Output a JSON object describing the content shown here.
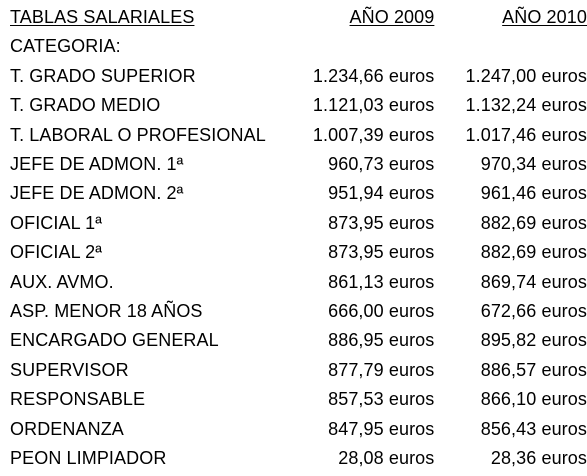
{
  "table": {
    "header": {
      "title": "TABLAS SALARIALES",
      "col_2009": "AÑO 2009",
      "col_2010": "AÑO 2010"
    },
    "subheader": "CATEGORIA:",
    "rows": [
      {
        "category": "T. GRADO SUPERIOR",
        "y2009": "1.234,66 euros",
        "y2010": "1.247,00 euros"
      },
      {
        "category": "T. GRADO MEDIO",
        "y2009": "1.121,03 euros",
        "y2010": "1.132,24 euros"
      },
      {
        "category": "T. LABORAL O PROFESIONAL",
        "y2009": "1.007,39 euros",
        "y2010": "1.017,46 euros"
      },
      {
        "category": "JEFE DE ADMON. 1ª",
        "y2009": "960,73 euros",
        "y2010": "970,34 euros"
      },
      {
        "category": "JEFE DE ADMON. 2ª",
        "y2009": "951,94 euros",
        "y2010": "961,46 euros"
      },
      {
        "category": "OFICIAL 1ª",
        "y2009": "873,95 euros",
        "y2010": "882,69 euros"
      },
      {
        "category": "OFICIAL 2ª",
        "y2009": "873,95 euros",
        "y2010": "882,69 euros"
      },
      {
        "category": "AUX. AVMO.",
        "y2009": "861,13 euros",
        "y2010": "869,74 euros"
      },
      {
        "category": "ASP. MENOR 18 AÑOS",
        "y2009": "666,00 euros",
        "y2010": "672,66 euros"
      },
      {
        "category": "ENCARGADO GENERAL",
        "y2009": "886,95 euros",
        "y2010": "895,82 euros"
      },
      {
        "category": "SUPERVISOR",
        "y2009": "877,79 euros",
        "y2010": "886,57 euros"
      },
      {
        "category": "RESPONSABLE",
        "y2009": "857,53 euros",
        "y2010": "866,10 euros"
      },
      {
        "category": "ORDENANZA",
        "y2009": "847,95 euros",
        "y2010": "856,43 euros"
      },
      {
        "category": "PEON LIMPIADOR",
        "y2009": "28,08 euros",
        "y2010": "28,36 euros"
      }
    ]
  }
}
